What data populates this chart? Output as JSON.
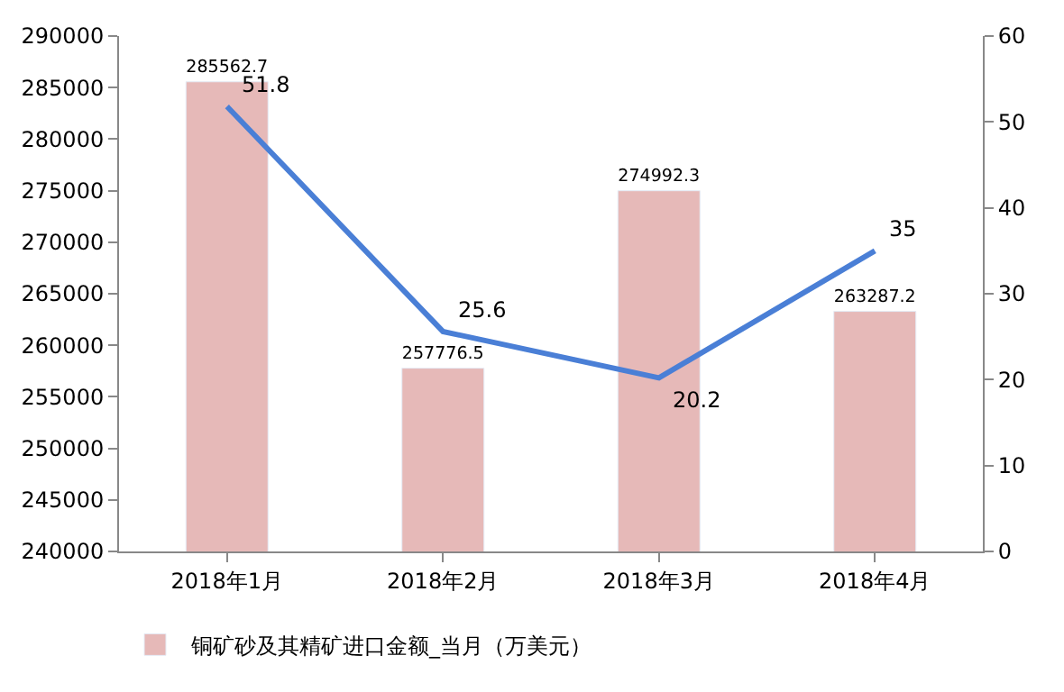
{
  "chart_data": {
    "type": "bar",
    "categories": [
      "2018年1月",
      "2018年2月",
      "2018年3月",
      "2018年4月"
    ],
    "series": [
      {
        "name": "铜矿砂及其精矿进口金额_当月（万美元）",
        "color": "#e6b9b8",
        "values": [
          285562.7,
          257776.5,
          274992.3,
          263287.2
        ]
      },
      {
        "type": "line",
        "axis": "y2",
        "color": "#4a7fd6",
        "values": [
          51.8,
          25.6,
          20.2,
          35
        ]
      }
    ],
    "ylim": [
      240000,
      290000
    ],
    "yticks": [
      240000,
      245000,
      250000,
      255000,
      260000,
      265000,
      270000,
      275000,
      280000,
      285000,
      290000
    ],
    "y2lim": [
      0,
      60
    ],
    "y2ticks": [
      0,
      10,
      20,
      30,
      40,
      50,
      60
    ],
    "data_labels": true,
    "grid": false,
    "legend": "bottom left",
    "marker": "none"
  }
}
